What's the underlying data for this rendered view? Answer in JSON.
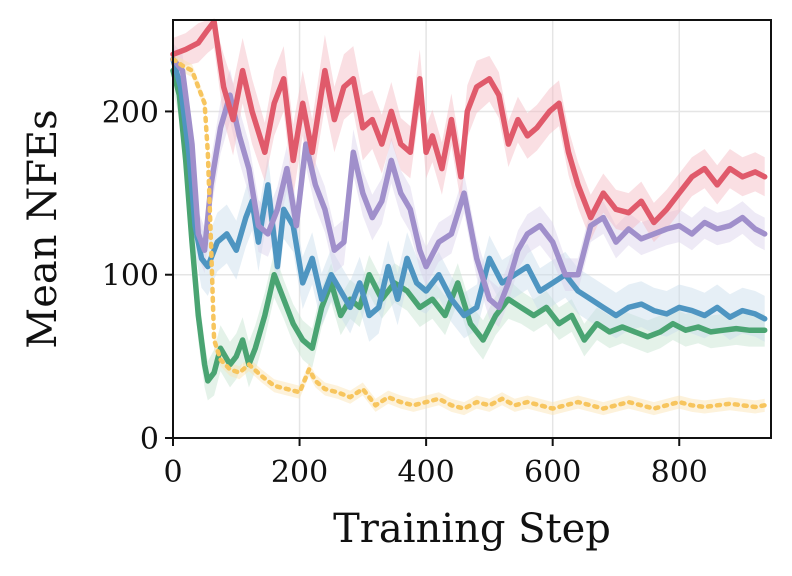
{
  "chart_data": {
    "type": "line",
    "title": "",
    "xlabel": "Training Step",
    "ylabel": "Mean NFEs",
    "xlim": [
      0,
      945
    ],
    "ylim": [
      0,
      256
    ],
    "xticks": [
      0,
      200,
      400,
      600,
      800
    ],
    "yticks": [
      0,
      100,
      200
    ],
    "grid": true,
    "legend": "none",
    "series": [
      {
        "name": "red",
        "color": "#e05a6b",
        "band_color": "#f4b8c1",
        "dash": "",
        "x": [
          0,
          20,
          40,
          55,
          65,
          80,
          95,
          110,
          125,
          145,
          160,
          175,
          190,
          205,
          220,
          240,
          255,
          270,
          285,
          300,
          315,
          330,
          345,
          360,
          375,
          390,
          400,
          410,
          425,
          440,
          455,
          465,
          480,
          500,
          515,
          530,
          545,
          560,
          575,
          595,
          610,
          625,
          640,
          660,
          680,
          700,
          720,
          740,
          760,
          780,
          800,
          820,
          840,
          860,
          880,
          900,
          920,
          935
        ],
        "values": [
          235,
          238,
          242,
          250,
          255,
          215,
          195,
          225,
          200,
          175,
          205,
          220,
          170,
          205,
          175,
          225,
          195,
          215,
          220,
          190,
          195,
          180,
          200,
          180,
          175,
          220,
          175,
          185,
          165,
          195,
          160,
          200,
          215,
          220,
          210,
          180,
          195,
          185,
          190,
          200,
          205,
          175,
          155,
          135,
          150,
          140,
          138,
          145,
          132,
          140,
          150,
          160,
          165,
          155,
          165,
          160,
          163,
          160
        ],
        "band": [
          10,
          10,
          12,
          14,
          16,
          20,
          22,
          20,
          20,
          18,
          20,
          20,
          22,
          20,
          20,
          22,
          20,
          20,
          20,
          20,
          18,
          18,
          18,
          16,
          16,
          18,
          16,
          16,
          16,
          16,
          16,
          16,
          16,
          14,
          14,
          14,
          14,
          14,
          14,
          14,
          14,
          14,
          14,
          14,
          12,
          12,
          12,
          12,
          12,
          12,
          12,
          12,
          12,
          12,
          12,
          12,
          12,
          12
        ]
      },
      {
        "name": "purple",
        "color": "#a08fcb",
        "band_color": "#d9d1ec",
        "dash": "",
        "x": [
          0,
          15,
          30,
          40,
          50,
          60,
          75,
          90,
          105,
          120,
          135,
          150,
          165,
          180,
          195,
          210,
          225,
          240,
          255,
          270,
          285,
          300,
          315,
          330,
          345,
          360,
          375,
          390,
          400,
          420,
          440,
          460,
          480,
          500,
          515,
          530,
          545,
          560,
          580,
          600,
          620,
          640,
          660,
          680,
          700,
          720,
          740,
          760,
          780,
          800,
          820,
          840,
          860,
          880,
          900,
          920,
          935
        ],
        "values": [
          232,
          225,
          180,
          125,
          115,
          155,
          190,
          210,
          185,
          165,
          130,
          125,
          140,
          165,
          130,
          180,
          155,
          140,
          115,
          120,
          175,
          150,
          135,
          145,
          170,
          150,
          140,
          115,
          105,
          120,
          125,
          150,
          110,
          85,
          80,
          95,
          115,
          125,
          130,
          120,
          100,
          100,
          130,
          135,
          120,
          128,
          122,
          125,
          128,
          130,
          125,
          132,
          128,
          130,
          135,
          128,
          125
        ],
        "band": [
          10,
          10,
          12,
          14,
          14,
          16,
          16,
          16,
          16,
          16,
          16,
          14,
          14,
          14,
          14,
          14,
          14,
          14,
          14,
          14,
          14,
          14,
          14,
          14,
          14,
          14,
          14,
          12,
          12,
          12,
          12,
          12,
          12,
          12,
          12,
          12,
          12,
          12,
          12,
          12,
          10,
          10,
          10,
          10,
          10,
          10,
          10,
          10,
          10,
          10,
          10,
          10,
          10,
          10,
          10,
          10,
          10
        ]
      },
      {
        "name": "blue",
        "color": "#4e95c1",
        "band_color": "#c7dcea",
        "dash": "",
        "x": [
          0,
          12,
          25,
          35,
          45,
          55,
          70,
          85,
          100,
          115,
          125,
          135,
          150,
          165,
          175,
          190,
          205,
          220,
          235,
          250,
          265,
          280,
          295,
          310,
          325,
          340,
          355,
          370,
          385,
          400,
          420,
          440,
          460,
          480,
          500,
          520,
          540,
          560,
          580,
          600,
          620,
          640,
          660,
          680,
          700,
          720,
          740,
          760,
          780,
          800,
          820,
          840,
          860,
          880,
          900,
          920,
          935
        ],
        "values": [
          232,
          215,
          175,
          130,
          110,
          105,
          120,
          125,
          115,
          135,
          145,
          120,
          155,
          105,
          140,
          130,
          95,
          110,
          85,
          100,
          90,
          80,
          95,
          75,
          80,
          105,
          85,
          110,
          95,
          90,
          100,
          85,
          75,
          80,
          110,
          95,
          100,
          105,
          90,
          95,
          100,
          90,
          85,
          80,
          75,
          80,
          82,
          78,
          76,
          80,
          78,
          75,
          80,
          74,
          78,
          76,
          73
        ],
        "band": [
          10,
          12,
          14,
          16,
          18,
          18,
          18,
          18,
          18,
          18,
          18,
          18,
          18,
          18,
          18,
          16,
          16,
          16,
          16,
          16,
          16,
          16,
          16,
          16,
          16,
          16,
          16,
          16,
          16,
          14,
          14,
          14,
          14,
          14,
          14,
          14,
          14,
          14,
          14,
          14,
          14,
          14,
          14,
          14,
          14,
          14,
          14,
          14,
          14,
          14,
          14,
          14,
          14,
          14,
          14,
          14,
          14
        ]
      },
      {
        "name": "green",
        "color": "#4aa472",
        "band_color": "#c3e3cf",
        "dash": "",
        "x": [
          0,
          10,
          20,
          30,
          40,
          50,
          55,
          65,
          75,
          90,
          100,
          110,
          120,
          130,
          145,
          160,
          175,
          190,
          205,
          220,
          235,
          250,
          265,
          280,
          295,
          310,
          330,
          350,
          370,
          390,
          410,
          430,
          450,
          470,
          490,
          510,
          530,
          550,
          570,
          590,
          610,
          630,
          650,
          670,
          690,
          710,
          730,
          750,
          770,
          790,
          810,
          830,
          850,
          870,
          890,
          910,
          935
        ],
        "values": [
          225,
          210,
          170,
          120,
          75,
          45,
          35,
          40,
          55,
          45,
          50,
          60,
          45,
          55,
          75,
          100,
          85,
          70,
          60,
          55,
          80,
          95,
          75,
          85,
          80,
          100,
          85,
          95,
          90,
          80,
          85,
          75,
          95,
          70,
          60,
          75,
          85,
          80,
          75,
          80,
          70,
          75,
          60,
          70,
          65,
          68,
          65,
          62,
          65,
          70,
          66,
          68,
          65,
          66,
          67,
          66,
          66
        ],
        "band": [
          12,
          14,
          16,
          18,
          16,
          14,
          12,
          14,
          14,
          14,
          14,
          14,
          14,
          14,
          14,
          14,
          12,
          12,
          12,
          12,
          12,
          12,
          12,
          12,
          12,
          12,
          12,
          12,
          12,
          12,
          12,
          12,
          12,
          12,
          12,
          12,
          12,
          10,
          10,
          10,
          10,
          10,
          10,
          10,
          10,
          10,
          10,
          10,
          10,
          10,
          10,
          10,
          10,
          10,
          10,
          10,
          10
        ]
      },
      {
        "name": "yellow",
        "color": "#f7c55e",
        "band_color": "#fbe3b0",
        "dash": "3,6",
        "x": [
          0,
          15,
          30,
          40,
          50,
          55,
          60,
          65,
          75,
          90,
          105,
          120,
          140,
          160,
          180,
          200,
          215,
          225,
          240,
          260,
          280,
          300,
          320,
          340,
          360,
          380,
          400,
          420,
          440,
          460,
          480,
          500,
          520,
          540,
          560,
          580,
          600,
          620,
          640,
          660,
          680,
          700,
          720,
          740,
          760,
          780,
          800,
          820,
          840,
          860,
          880,
          900,
          920,
          935
        ],
        "values": [
          232,
          228,
          225,
          215,
          205,
          175,
          120,
          60,
          48,
          42,
          40,
          45,
          38,
          32,
          30,
          28,
          42,
          35,
          30,
          28,
          25,
          30,
          20,
          25,
          22,
          20,
          22,
          24,
          20,
          18,
          22,
          20,
          24,
          20,
          22,
          20,
          18,
          20,
          22,
          20,
          18,
          20,
          22,
          20,
          18,
          20,
          22,
          20,
          19,
          20,
          21,
          20,
          19,
          20
        ],
        "band": [
          4,
          4,
          4,
          4,
          4,
          4,
          6,
          6,
          4,
          4,
          4,
          4,
          4,
          4,
          4,
          4,
          4,
          4,
          4,
          4,
          4,
          4,
          4,
          4,
          4,
          4,
          4,
          4,
          4,
          4,
          4,
          4,
          4,
          4,
          4,
          4,
          4,
          4,
          4,
          4,
          4,
          4,
          4,
          4,
          4,
          4,
          4,
          4,
          4,
          4,
          4,
          4,
          4,
          4
        ]
      }
    ]
  }
}
